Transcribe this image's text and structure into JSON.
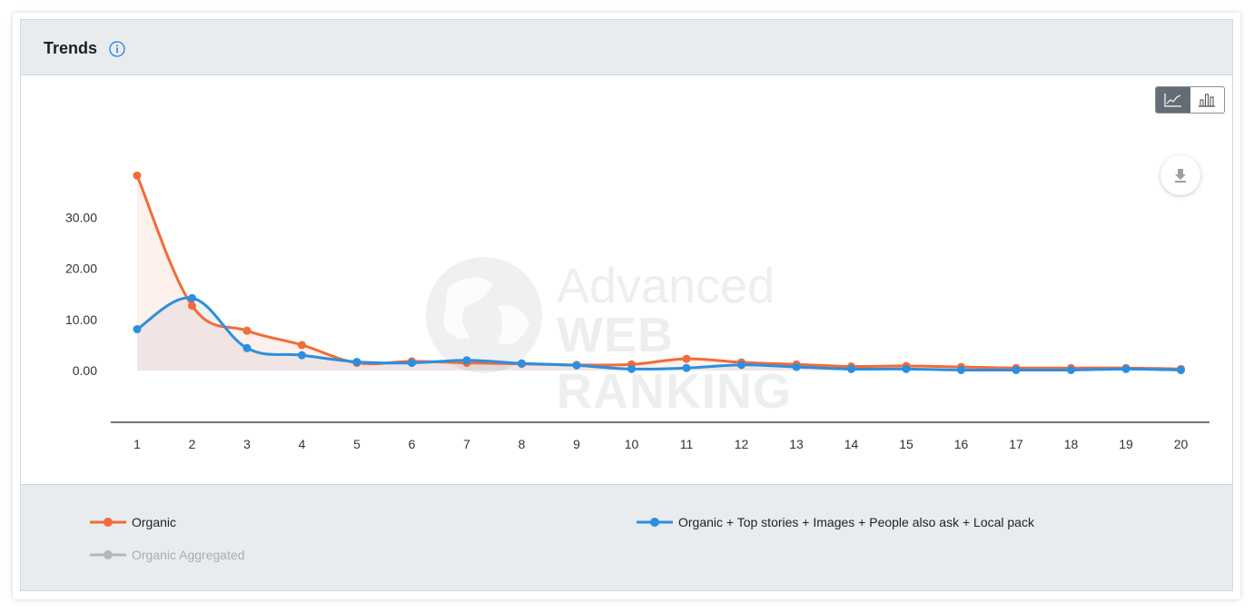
{
  "header": {
    "title": "Trends"
  },
  "icons": {
    "info": "info-circle-icon",
    "line": "line-chart-icon",
    "bar": "bar-chart-icon",
    "download": "download-icon"
  },
  "watermark": {
    "line1": "Advanced",
    "line2": "WEB RANKING"
  },
  "colors": {
    "organic": "#f26b3a",
    "combined": "#2b8fe0",
    "aggregated": "#b2b7bc",
    "accent": "#2a7fd4"
  },
  "legend": [
    {
      "label": "Organic",
      "color": "#f26b3a",
      "muted": false
    },
    {
      "label": "Organic + Top stories + Images + People also ask + Local pack",
      "color": "#2b8fe0",
      "muted": false
    },
    {
      "label": "Organic Aggregated",
      "color": "#b2b7bc",
      "muted": true
    }
  ],
  "chart_data": {
    "type": "line",
    "x": [
      1,
      2,
      3,
      4,
      5,
      6,
      7,
      8,
      9,
      10,
      11,
      12,
      13,
      14,
      15,
      16,
      17,
      18,
      19,
      20
    ],
    "y_ticks": [
      "0.00",
      "10.00",
      "20.00",
      "30.00"
    ],
    "ylim": [
      -10,
      40
    ],
    "series": [
      {
        "name": "Organic",
        "color": "#f26b3a",
        "values": [
          38.2,
          12.7,
          7.8,
          5.0,
          1.5,
          1.8,
          1.5,
          1.3,
          1.1,
          1.2,
          2.3,
          1.6,
          1.2,
          0.8,
          0.9,
          0.7,
          0.5,
          0.5,
          0.5,
          0.3
        ]
      },
      {
        "name": "Organic + Top stories + Images + People also ask + Local pack",
        "color": "#2b8fe0",
        "values": [
          8.1,
          14.2,
          4.4,
          3.0,
          1.7,
          1.5,
          2.0,
          1.4,
          1.0,
          0.3,
          0.5,
          1.1,
          0.7,
          0.3,
          0.3,
          0.1,
          0.1,
          0.1,
          0.3,
          0.1
        ]
      }
    ],
    "legend_position": "bottom",
    "grid": false
  }
}
